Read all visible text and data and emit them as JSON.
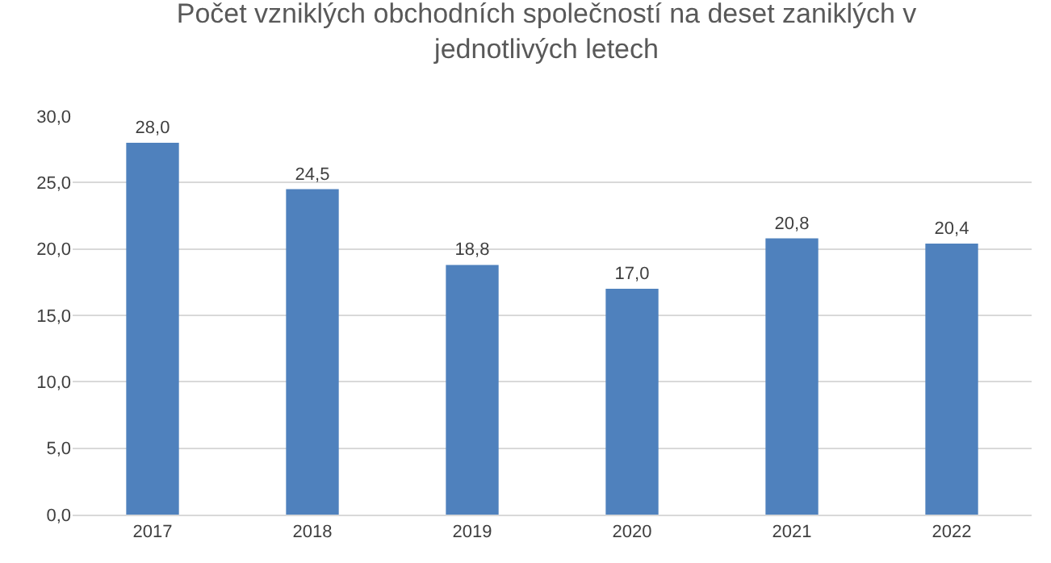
{
  "chart_data": {
    "type": "bar",
    "title": "Počet vzniklých obchodních společností na deset zaniklých v jednotlivých letech",
    "categories": [
      "2017",
      "2018",
      "2019",
      "2020",
      "2021",
      "2022"
    ],
    "values": [
      28.0,
      24.5,
      18.8,
      17.0,
      20.8,
      20.4
    ],
    "value_labels": [
      "28,0",
      "24,5",
      "18,8",
      "17,0",
      "20,8",
      "20,4"
    ],
    "color": "#4f81bd",
    "ylim": [
      0,
      30
    ],
    "yticks": [
      {
        "value": 0,
        "label": "0,0"
      },
      {
        "value": 5,
        "label": "5,0"
      },
      {
        "value": 10,
        "label": "10,0"
      },
      {
        "value": 15,
        "label": "15,0"
      },
      {
        "value": 20,
        "label": "20,0"
      },
      {
        "value": 25,
        "label": "25,0"
      },
      {
        "value": 30,
        "label": "30,0"
      }
    ],
    "grid": "y",
    "legend": false
  }
}
